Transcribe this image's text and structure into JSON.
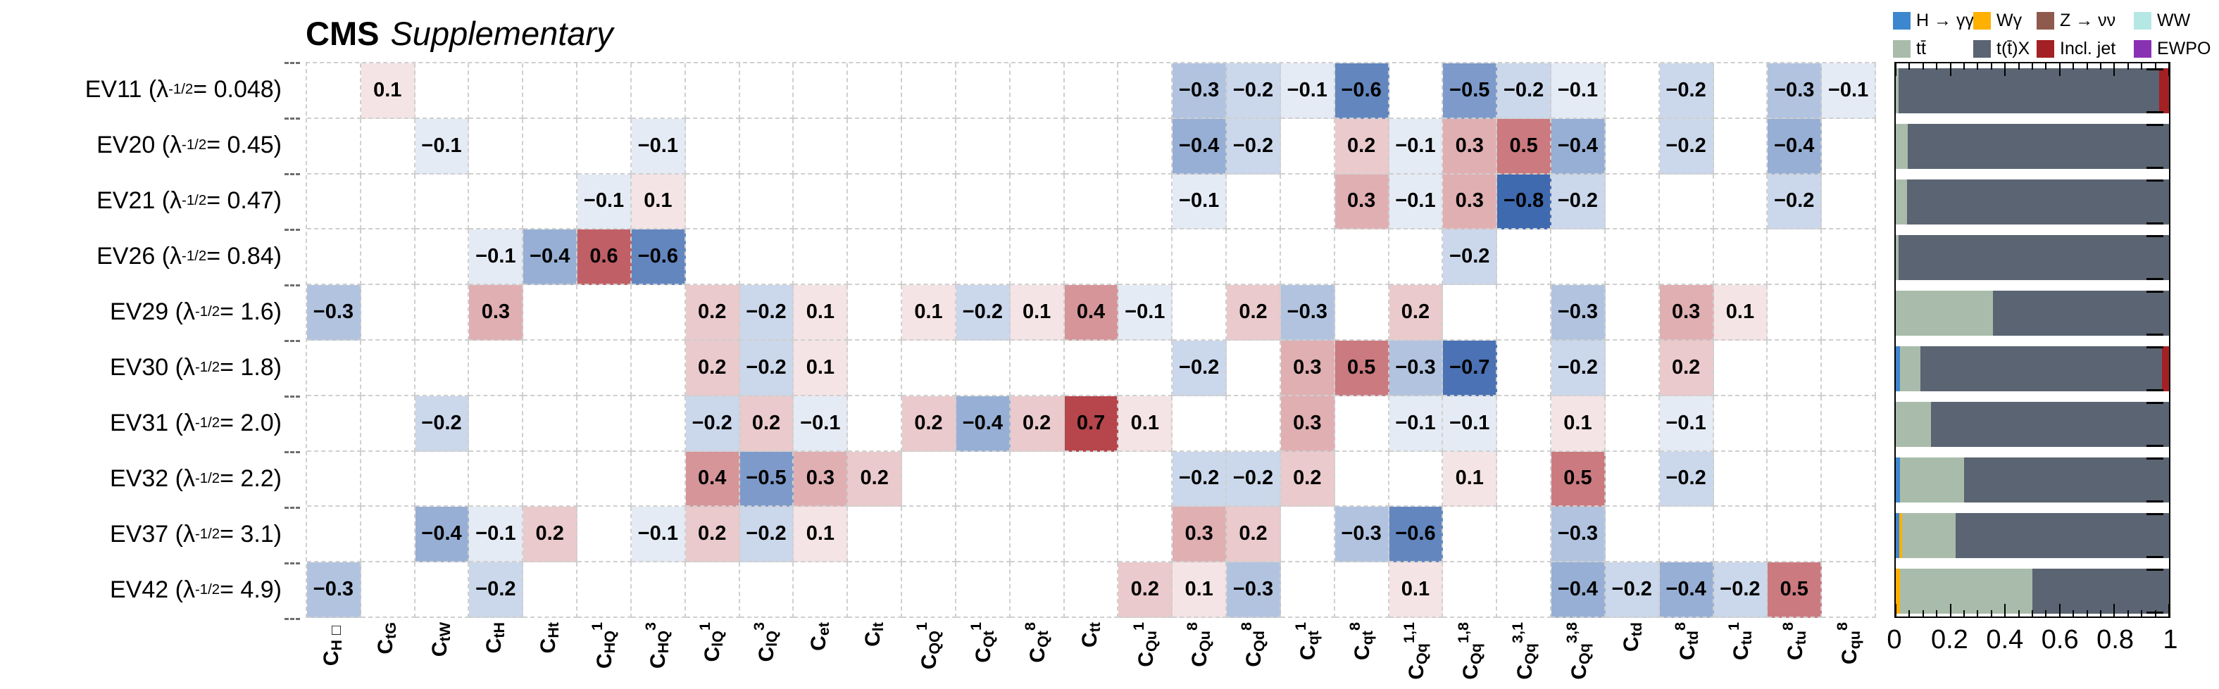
{
  "title": {
    "cms": "CMS",
    "subtitle": "Supplementary"
  },
  "colors": {
    "positive_base": "#b23a42",
    "negative_base": "#3f6ab0",
    "grid": "#cfcfcf",
    "series": {
      "hgg": "#3d87cf",
      "wgamma": "#ffb000",
      "znn": "#8f5a4e",
      "ww": "#b5e8e4",
      "ttbar": "#a9bcab",
      "ttx": "#5b6472",
      "incljet": "#a32024",
      "ewpo": "#8931b3"
    }
  },
  "chart_data": [
    {
      "type": "heatmap",
      "value_range": [
        -1,
        1
      ],
      "columns": [
        {
          "sub": "H□",
          "sup": ""
        },
        {
          "sub": "tG",
          "sup": ""
        },
        {
          "sub": "tW",
          "sup": ""
        },
        {
          "sub": "tH",
          "sup": ""
        },
        {
          "sub": "Ht",
          "sup": ""
        },
        {
          "sub": "HQ",
          "sup": "1"
        },
        {
          "sub": "HQ",
          "sup": "3"
        },
        {
          "sub": "lQ",
          "sup": "1"
        },
        {
          "sub": "lQ",
          "sup": "3"
        },
        {
          "sub": "et",
          "sup": ""
        },
        {
          "sub": "lt",
          "sup": ""
        },
        {
          "sub": "QQ",
          "sup": "1"
        },
        {
          "sub": "Qt",
          "sup": "1"
        },
        {
          "sub": "Qt",
          "sup": "8"
        },
        {
          "sub": "tt",
          "sup": ""
        },
        {
          "sub": "Qu",
          "sup": "1"
        },
        {
          "sub": "Qu",
          "sup": "8"
        },
        {
          "sub": "Qd",
          "sup": "8"
        },
        {
          "sub": "qt",
          "sup": "1"
        },
        {
          "sub": "qt",
          "sup": "8"
        },
        {
          "sub": "Qq",
          "sup": "1,1"
        },
        {
          "sub": "Qq",
          "sup": "1,8"
        },
        {
          "sub": "Qq",
          "sup": "3,1"
        },
        {
          "sub": "Qq",
          "sup": "3,8"
        },
        {
          "sub": "td",
          "sup": ""
        },
        {
          "sub": "td",
          "sup": "8"
        },
        {
          "sub": "tu",
          "sup": "1"
        },
        {
          "sub": "tu",
          "sup": "8"
        },
        {
          "sub": "qu",
          "sup": "8"
        }
      ],
      "rows": [
        {
          "ev": "EV11",
          "lambda": "0.048",
          "cells": {
            "2": 0.1,
            "17": -0.3,
            "18": -0.2,
            "19": -0.1,
            "20": -0.6,
            "22": -0.5,
            "23": -0.2,
            "24": -0.1,
            "26": -0.2,
            "28": -0.3,
            "29": -0.1
          }
        },
        {
          "ev": "EV20",
          "lambda": "0.45",
          "cells": {
            "3": -0.1,
            "7": -0.1,
            "17": -0.4,
            "18": -0.2,
            "20": 0.2,
            "21": -0.1,
            "22": 0.3,
            "23": 0.5,
            "24": -0.4,
            "26": -0.2,
            "28": -0.4
          }
        },
        {
          "ev": "EV21",
          "lambda": "0.47",
          "cells": {
            "6": -0.1,
            "7": 0.1,
            "17": -0.1,
            "20": 0.3,
            "21": -0.1,
            "22": 0.3,
            "23": -0.8,
            "24": -0.2,
            "28": -0.2
          }
        },
        {
          "ev": "EV26",
          "lambda": "0.84",
          "cells": {
            "4": -0.1,
            "5": -0.4,
            "6": 0.6,
            "7": -0.6,
            "22": -0.2
          }
        },
        {
          "ev": "EV29",
          "lambda": "1.6",
          "cells": {
            "1": -0.3,
            "4": 0.3,
            "8": 0.2,
            "9": -0.2,
            "10": 0.1,
            "12": 0.1,
            "13": -0.2,
            "14": 0.1,
            "15": 0.4,
            "16": -0.1,
            "18": 0.2,
            "19": -0.3,
            "21": 0.2,
            "24": -0.3,
            "26": 0.3,
            "27": 0.1
          }
        },
        {
          "ev": "EV30",
          "lambda": "1.8",
          "cells": {
            "8": 0.2,
            "9": -0.2,
            "10": 0.1,
            "17": -0.2,
            "19": 0.3,
            "20": 0.5,
            "21": -0.3,
            "22": -0.7,
            "24": -0.2,
            "26": 0.2
          }
        },
        {
          "ev": "EV31",
          "lambda": "2.0",
          "cells": {
            "3": -0.2,
            "8": -0.2,
            "9": 0.2,
            "10": -0.1,
            "12": 0.2,
            "13": -0.4,
            "14": 0.2,
            "15": 0.7,
            "16": 0.1,
            "19": 0.3,
            "21": -0.1,
            "22": -0.1,
            "24": 0.1,
            "26": -0.1
          }
        },
        {
          "ev": "EV32",
          "lambda": "2.2",
          "cells": {
            "8": 0.4,
            "9": -0.5,
            "10": 0.3,
            "11": 0.2,
            "17": -0.2,
            "18": -0.2,
            "19": 0.2,
            "22": 0.1,
            "24": 0.5,
            "26": -0.2
          }
        },
        {
          "ev": "EV37",
          "lambda": "3.1",
          "cells": {
            "3": -0.4,
            "4": -0.1,
            "5": 0.2,
            "7": -0.1,
            "8": 0.2,
            "9": -0.2,
            "10": 0.1,
            "17": 0.3,
            "18": 0.2,
            "20": -0.3,
            "21": -0.6,
            "24": -0.3
          }
        },
        {
          "ev": "EV42",
          "lambda": "4.9",
          "cells": {
            "1": -0.3,
            "4": -0.2,
            "16": 0.2,
            "17": 0.1,
            "18": -0.3,
            "21": 0.1,
            "24": -0.4,
            "25": -0.2,
            "26": -0.4,
            "27": -0.2,
            "28": 0.5
          }
        }
      ]
    },
    {
      "type": "bar",
      "orientation": "horizontal-stacked",
      "xlim": [
        0,
        1
      ],
      "x_ticks": [
        "0",
        "0.2",
        "0.4",
        "0.6",
        "0.8",
        "1"
      ],
      "legend_position": "top-right",
      "legend": [
        {
          "key": "hgg",
          "label": "H → γγ"
        },
        {
          "key": "wgamma",
          "label": "Wγ"
        },
        {
          "key": "znn",
          "label": "Z → νν"
        },
        {
          "key": "ww",
          "label": "WW"
        },
        {
          "key": "ttbar",
          "label": "tt̄"
        },
        {
          "key": "ttx",
          "label": "t(t̄)X"
        },
        {
          "key": "incljet",
          "label": "Incl. jet"
        },
        {
          "key": "ewpo",
          "label": "EWPO"
        }
      ],
      "bars": [
        {
          "ev": "EV11",
          "segments": [
            [
              "ttbar",
              0.01
            ],
            [
              "ttx",
              0.955
            ],
            [
              "incljet",
              0.035
            ]
          ]
        },
        {
          "ev": "EV20",
          "segments": [
            [
              "ttbar",
              0.045
            ],
            [
              "ttx",
              0.955
            ]
          ]
        },
        {
          "ev": "EV21",
          "segments": [
            [
              "ttbar",
              0.04
            ],
            [
              "ttx",
              0.96
            ]
          ]
        },
        {
          "ev": "EV26",
          "segments": [
            [
              "ttbar",
              0.01
            ],
            [
              "ttx",
              0.99
            ]
          ]
        },
        {
          "ev": "EV29",
          "segments": [
            [
              "ttbar",
              0.355
            ],
            [
              "ttx",
              0.645
            ]
          ]
        },
        {
          "ev": "EV30",
          "segments": [
            [
              "hgg",
              0.015
            ],
            [
              "ttbar",
              0.075
            ],
            [
              "ttx",
              0.885
            ],
            [
              "incljet",
              0.025
            ]
          ]
        },
        {
          "ev": "EV31",
          "segments": [
            [
              "ttbar",
              0.13
            ],
            [
              "ttx",
              0.87
            ]
          ]
        },
        {
          "ev": "EV32",
          "segments": [
            [
              "hgg",
              0.015
            ],
            [
              "ttbar",
              0.235
            ],
            [
              "ttx",
              0.75
            ]
          ]
        },
        {
          "ev": "EV37",
          "segments": [
            [
              "hgg",
              0.012
            ],
            [
              "wgamma",
              0.012
            ],
            [
              "ttbar",
              0.196
            ],
            [
              "ttx",
              0.78
            ]
          ]
        },
        {
          "ev": "EV42",
          "segments": [
            [
              "wgamma",
              0.015
            ],
            [
              "ttbar",
              0.485
            ],
            [
              "ttx",
              0.5
            ]
          ]
        }
      ]
    }
  ]
}
